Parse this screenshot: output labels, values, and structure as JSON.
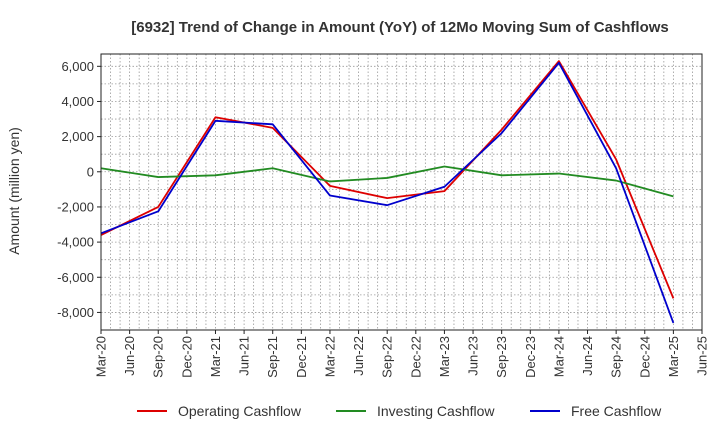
{
  "chart_data": {
    "type": "line",
    "title": "[6932]  Trend of Change in Amount (YoY) of 12Mo Moving Sum of Cashflows",
    "xlabel": "",
    "ylabel": "Amount (million yen)",
    "ylim": [
      -9000,
      6700
    ],
    "yticks": [
      6000,
      4000,
      2000,
      0,
      -2000,
      -4000,
      -6000,
      -8000
    ],
    "ytick_labels": [
      "6,000",
      "4,000",
      "2,000",
      "0",
      "-2,000",
      "-4,000",
      "-6,000",
      "-8,000"
    ],
    "x_tick_labels": [
      "Mar-20",
      "Jun-20",
      "Sep-20",
      "Dec-20",
      "Mar-21",
      "Jun-21",
      "Sep-21",
      "Dec-21",
      "Mar-22",
      "Jun-22",
      "Sep-22",
      "Dec-22",
      "Mar-23",
      "Jun-23",
      "Sep-23",
      "Dec-23",
      "Mar-24",
      "Jun-24",
      "Sep-24",
      "Dec-24",
      "Mar-25",
      "Jun-25"
    ],
    "grid": true,
    "legend_position": "bottom",
    "series": [
      {
        "name": "Operating Cashflow",
        "color": "#dd0000",
        "points": [
          [
            "Mar-20",
            -3600
          ],
          [
            "Sep-20",
            -2000
          ],
          [
            "Mar-21",
            3100
          ],
          [
            "Sep-21",
            2500
          ],
          [
            "Mar-22",
            -800
          ],
          [
            "Sep-22",
            -1500
          ],
          [
            "Mar-23",
            -1100
          ],
          [
            "Sep-23",
            2400
          ],
          [
            "Mar-24",
            6300
          ],
          [
            "Sep-24",
            700
          ],
          [
            "Mar-25",
            -7200
          ]
        ]
      },
      {
        "name": "Investing Cashflow",
        "color": "#228b22",
        "points": [
          [
            "Mar-20",
            200
          ],
          [
            "Sep-20",
            -300
          ],
          [
            "Mar-21",
            -200
          ],
          [
            "Sep-21",
            200
          ],
          [
            "Mar-22",
            -550
          ],
          [
            "Sep-22",
            -350
          ],
          [
            "Mar-23",
            300
          ],
          [
            "Sep-23",
            -200
          ],
          [
            "Mar-24",
            -100
          ],
          [
            "Sep-24",
            -500
          ],
          [
            "Mar-25",
            -1400
          ]
        ]
      },
      {
        "name": "Free Cashflow",
        "color": "#0000cc",
        "points": [
          [
            "Mar-20",
            -3500
          ],
          [
            "Sep-20",
            -2250
          ],
          [
            "Mar-21",
            2900
          ],
          [
            "Sep-21",
            2700
          ],
          [
            "Mar-22",
            -1350
          ],
          [
            "Sep-22",
            -1900
          ],
          [
            "Mar-23",
            -850
          ],
          [
            "Sep-23",
            2200
          ],
          [
            "Mar-24",
            6200
          ],
          [
            "Sep-24",
            200
          ],
          [
            "Mar-25",
            -8600
          ]
        ]
      }
    ]
  }
}
